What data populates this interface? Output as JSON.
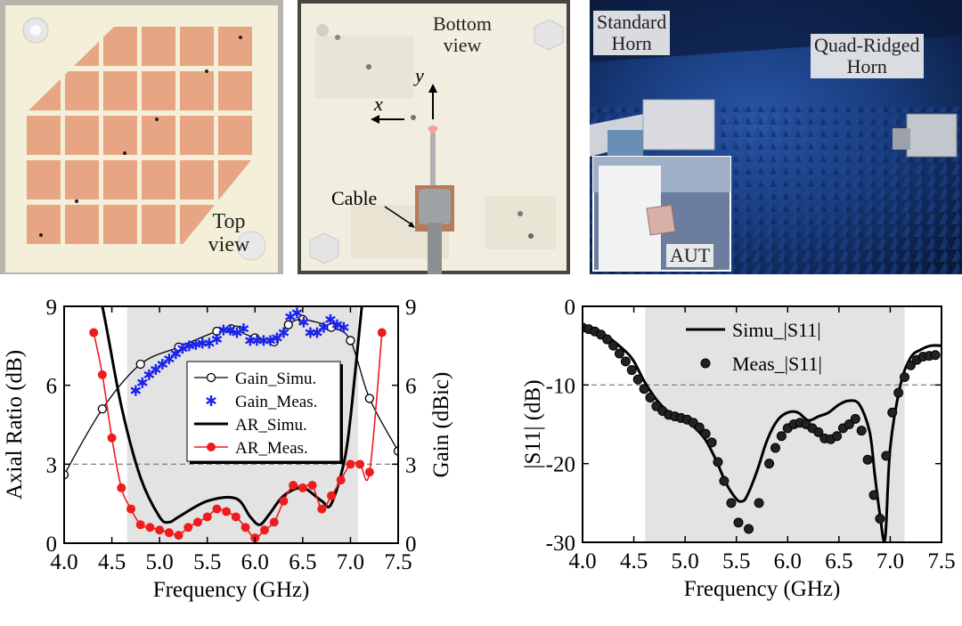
{
  "photos": {
    "top_view": {
      "label_line1": "Top",
      "label_line2": "view"
    },
    "bottom_view": {
      "label_line1": "Bottom",
      "label_line2": "view",
      "axis_x": "x",
      "axis_y": "y",
      "cable": "Cable"
    },
    "chamber": {
      "standard_line1": "Standard",
      "standard_line2": "Horn",
      "qrh_line1": "Quad-Ridged",
      "qrh_line2": "Horn",
      "aut": "AUT"
    }
  },
  "colors": {
    "patch": "#e8a584",
    "board": "#f4efd8",
    "shade": "#e3e3e3",
    "meas_red": "#ee1c1c",
    "meas_blue": "#1a22ee"
  },
  "chart_data": [
    {
      "type": "line",
      "xlabel": "Frequency (GHz)",
      "ylabel": "Axial Ratio (dB)",
      "y2label": "Gain (dBic)",
      "xlim": [
        4.0,
        7.5
      ],
      "ylim": [
        0,
        9
      ],
      "y2lim": [
        0,
        9
      ],
      "xticks": [
        "4.0",
        "4.5",
        "5.0",
        "5.5",
        "6.0",
        "6.5",
        "7.0",
        "7.5"
      ],
      "yticks": [
        "0",
        "3",
        "6",
        "9"
      ],
      "y2ticks": [
        "0",
        "3",
        "6",
        "9"
      ],
      "shaded_band": [
        4.66,
        7.08
      ],
      "reference_line": 3,
      "legend_position": "center",
      "series": [
        {
          "name": "Gain_Simu.",
          "axis": "right",
          "style": "line-open-circle",
          "x": [
            4.0,
            4.4,
            4.8,
            5.2,
            5.6,
            5.75,
            5.8,
            6.0,
            6.2,
            6.35,
            6.5,
            6.8,
            7.0,
            7.2,
            7.5
          ],
          "y": [
            2.6,
            5.1,
            6.8,
            7.45,
            8.05,
            8.15,
            8.1,
            7.8,
            7.65,
            8.3,
            8.5,
            8.2,
            7.7,
            5.5,
            3.5
          ]
        },
        {
          "name": "Gain_Meas.",
          "axis": "right",
          "style": "marker-star",
          "x": [
            4.75,
            4.82,
            4.89,
            4.96,
            5.03,
            5.1,
            5.17,
            5.24,
            5.31,
            5.38,
            5.45,
            5.52,
            5.6,
            5.67,
            5.74,
            5.81,
            5.88,
            5.95,
            6.02,
            6.09,
            6.16,
            6.23,
            6.3,
            6.37,
            6.44,
            6.51,
            6.58,
            6.65,
            6.72,
            6.79,
            6.86,
            6.93
          ],
          "y": [
            5.8,
            6.1,
            6.4,
            6.6,
            6.8,
            7.0,
            7.2,
            7.4,
            7.5,
            7.55,
            7.6,
            7.6,
            7.75,
            8.1,
            8.1,
            8.0,
            8.15,
            7.7,
            7.7,
            7.7,
            7.7,
            7.8,
            8.0,
            8.6,
            8.75,
            8.4,
            8.0,
            8.0,
            8.2,
            8.5,
            8.3,
            8.2
          ]
        },
        {
          "name": "AR_Simu.",
          "axis": "left",
          "style": "line-thick",
          "x": [
            4.2,
            4.4,
            4.6,
            4.8,
            5.0,
            5.1,
            5.2,
            5.5,
            5.8,
            5.95,
            6.05,
            6.15,
            6.3,
            6.5,
            6.7,
            6.8,
            6.95,
            7.05,
            7.2
          ],
          "y": [
            12.0,
            9.0,
            5.2,
            2.5,
            1.0,
            0.8,
            1.0,
            1.6,
            1.7,
            1.0,
            0.7,
            1.1,
            1.8,
            2.1,
            1.6,
            1.5,
            3.4,
            6.5,
            12.0
          ]
        },
        {
          "name": "AR_Meas.",
          "axis": "left",
          "style": "line-red-dot",
          "x": [
            4.31,
            4.4,
            4.5,
            4.6,
            4.7,
            4.8,
            4.9,
            5.0,
            5.1,
            5.2,
            5.3,
            5.4,
            5.5,
            5.6,
            5.7,
            5.8,
            5.9,
            6.0,
            6.1,
            6.2,
            6.3,
            6.4,
            6.5,
            6.6,
            6.7,
            6.8,
            6.9,
            7.0,
            7.1,
            7.2,
            7.33
          ],
          "y": [
            8.0,
            6.4,
            4.0,
            2.1,
            1.3,
            0.7,
            0.6,
            0.5,
            0.4,
            0.3,
            0.6,
            0.8,
            1.0,
            1.3,
            1.2,
            1.0,
            0.6,
            0.2,
            0.5,
            0.8,
            1.6,
            2.2,
            2.1,
            2.2,
            1.3,
            1.8,
            2.4,
            3.0,
            3.0,
            2.7,
            8.0
          ]
        }
      ]
    },
    {
      "type": "line",
      "xlabel": "Frequency (GHz)",
      "ylabel": "|S11| (dB)",
      "xlim": [
        4.0,
        7.5
      ],
      "ylim": [
        -30,
        0
      ],
      "xticks": [
        "4.0",
        "4.5",
        "5.0",
        "5.5",
        "6.0",
        "6.5",
        "7.0",
        "7.5"
      ],
      "yticks": [
        "0",
        "-10",
        "-20",
        "-30"
      ],
      "shaded_band": [
        4.61,
        7.14
      ],
      "reference_line": -10,
      "legend_position": "top-right",
      "series": [
        {
          "name": "Simu_|S11|",
          "style": "line-thick",
          "x": [
            4.0,
            4.2,
            4.4,
            4.5,
            4.6,
            4.7,
            4.8,
            4.9,
            5.0,
            5.1,
            5.2,
            5.3,
            5.4,
            5.5,
            5.55,
            5.6,
            5.7,
            5.8,
            5.9,
            6.0,
            6.1,
            6.2,
            6.3,
            6.4,
            6.5,
            6.6,
            6.7,
            6.8,
            6.85,
            6.9,
            6.95,
            7.0,
            7.1,
            7.2,
            7.3,
            7.4,
            7.5
          ],
          "y": [
            -2.5,
            -3.5,
            -5.5,
            -7.0,
            -9.5,
            -11.5,
            -13.0,
            -14.0,
            -14.5,
            -15.5,
            -17.0,
            -19.5,
            -22.5,
            -24.5,
            -24.8,
            -24.2,
            -21.0,
            -17.0,
            -14.5,
            -13.5,
            -13.5,
            -14.5,
            -14.0,
            -13.5,
            -12.5,
            -12.0,
            -12.5,
            -16.0,
            -21.5,
            -26.5,
            -29.5,
            -18.0,
            -10.0,
            -6.5,
            -5.5,
            -5.0,
            -5.0
          ]
        },
        {
          "name": "Meas_|S11|",
          "style": "marker-circle",
          "x": [
            4.0,
            4.06,
            4.12,
            4.18,
            4.24,
            4.3,
            4.36,
            4.42,
            4.48,
            4.54,
            4.6,
            4.66,
            4.72,
            4.78,
            4.84,
            4.9,
            4.96,
            5.02,
            5.08,
            5.14,
            5.2,
            5.26,
            5.32,
            5.38,
            5.45,
            5.52,
            5.62,
            5.72,
            5.82,
            5.88,
            5.94,
            6.0,
            6.06,
            6.12,
            6.18,
            6.24,
            6.3,
            6.36,
            6.42,
            6.48,
            6.54,
            6.6,
            6.66,
            6.72,
            6.78,
            6.84,
            6.9,
            6.96,
            7.02,
            7.08,
            7.14,
            7.2,
            7.26,
            7.32,
            7.38,
            7.44
          ],
          "y": [
            -2.7,
            -2.9,
            -3.2,
            -3.6,
            -4.2,
            -5.0,
            -6.0,
            -7.0,
            -8.1,
            -9.3,
            -10.5,
            -11.6,
            -12.7,
            -13.3,
            -13.8,
            -14.0,
            -14.2,
            -14.4,
            -14.8,
            -15.4,
            -16.2,
            -17.3,
            -19.8,
            -22.2,
            -25.0,
            -27.5,
            -28.3,
            -25.0,
            -20.0,
            -18.0,
            -16.5,
            -15.5,
            -15.0,
            -14.8,
            -15.0,
            -15.5,
            -16.0,
            -16.8,
            -16.9,
            -16.5,
            -15.5,
            -15.0,
            -14.3,
            -15.8,
            -19.5,
            -24.0,
            -27.0,
            -19.0,
            -13.5,
            -11.0,
            -9.0,
            -7.5,
            -6.8,
            -6.4,
            -6.3,
            -6.2
          ]
        }
      ]
    }
  ]
}
